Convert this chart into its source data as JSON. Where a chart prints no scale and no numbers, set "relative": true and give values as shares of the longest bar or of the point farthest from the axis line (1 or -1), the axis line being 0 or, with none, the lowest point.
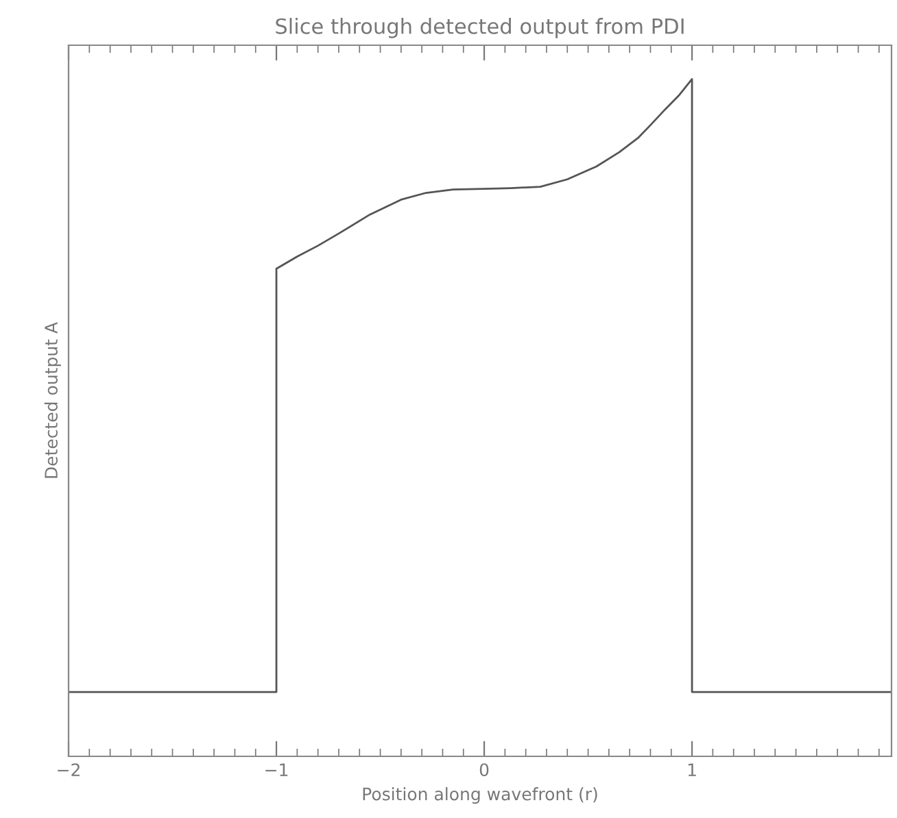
{
  "chart_data": {
    "type": "line",
    "title": "Slice through detected output from PDI",
    "xlabel": "Position along wavefront (r)",
    "ylabel": "Detected output A",
    "relative": true,
    "xlim": [
      -2,
      1.96
    ],
    "xticks": [
      {
        "value": -2,
        "label": "−2"
      },
      {
        "value": -1,
        "label": "−1"
      },
      0,
      1
    ],
    "series": [
      {
        "color": "#555555",
        "x": [
          -2,
          -1,
          -1,
          -0.9,
          -0.8,
          -0.7,
          -0.55,
          -0.4,
          -0.28,
          -0.15,
          0,
          0.13,
          0.27,
          0.4,
          0.54,
          0.65,
          0.74,
          0.8,
          0.87,
          0.94,
          1.0,
          1.0,
          1.02,
          1.96
        ],
        "values": [
          0.095,
          0.095,
          0.72,
          0.738,
          0.754,
          0.772,
          0.8,
          0.822,
          0.832,
          0.837,
          0.838,
          0.839,
          0.841,
          0.852,
          0.871,
          0.892,
          0.913,
          0.932,
          0.955,
          0.977,
          1.0,
          0.095,
          0.095,
          0.095
        ]
      }
    ],
    "grid": false,
    "marker": "none",
    "line_style": "solid"
  }
}
